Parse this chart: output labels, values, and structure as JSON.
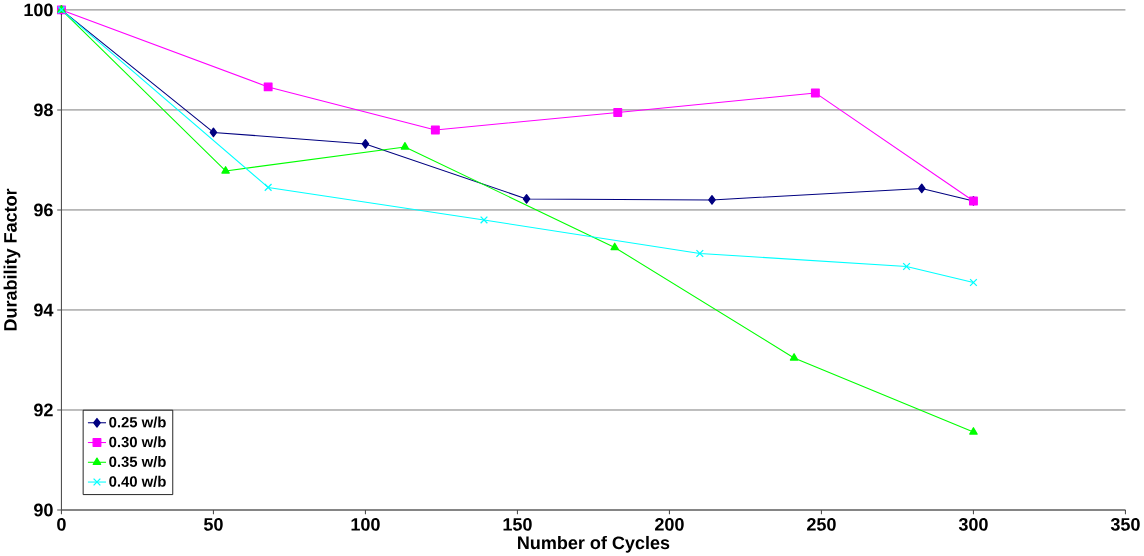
{
  "chart_data": {
    "type": "line",
    "xlabel": "Number of Cycles",
    "ylabel": "Durability Factor",
    "xlim": [
      0,
      350
    ],
    "xticks": [
      0,
      50,
      100,
      150,
      200,
      250,
      300,
      350
    ],
    "ylim": [
      90,
      100
    ],
    "yticks": [
      90,
      92,
      94,
      96,
      98,
      100
    ],
    "grid": "y",
    "legend": "bottom left",
    "series": [
      {
        "name": "0.25 w/b",
        "color": "#000080",
        "marker": "diamond",
        "x": [
          0,
          50,
          100,
          153,
          214,
          283,
          300
        ],
        "values": [
          100,
          97.55,
          97.32,
          96.22,
          96.2,
          96.43,
          96.18
        ]
      },
      {
        "name": "0.30 w/b",
        "color": "#ff00ff",
        "marker": "square",
        "x": [
          0,
          68,
          123,
          183,
          248,
          300
        ],
        "values": [
          100,
          98.46,
          97.6,
          97.95,
          98.34,
          96.18
        ]
      },
      {
        "name": "0.35 w/b",
        "color": "#00ff00",
        "marker": "triangle",
        "x": [
          0,
          54,
          113,
          182,
          241,
          300
        ],
        "values": [
          100,
          96.78,
          97.26,
          95.25,
          93.04,
          91.56
        ]
      },
      {
        "name": "0.40 w/b",
        "color": "#00ffff",
        "marker": "cross",
        "x": [
          0,
          68,
          139,
          210,
          278,
          300
        ],
        "values": [
          100,
          96.45,
          95.8,
          95.13,
          94.87,
          94.55
        ]
      }
    ]
  }
}
